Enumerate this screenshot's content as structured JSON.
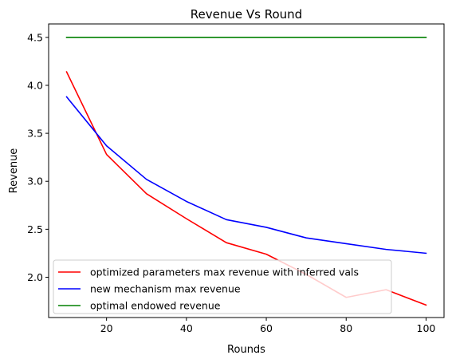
{
  "chart_data": {
    "type": "line",
    "title": "Revenue Vs Round",
    "xlabel": "Rounds",
    "ylabel": "Revenue",
    "xlim": [
      5.5,
      104.5
    ],
    "ylim": [
      1.58,
      4.64
    ],
    "xticks": [
      20,
      40,
      60,
      80,
      100
    ],
    "xtick_labels": [
      "20",
      "40",
      "60",
      "80",
      "100"
    ],
    "yticks": [
      2.0,
      2.5,
      3.0,
      3.5,
      4.0,
      4.5
    ],
    "ytick_labels": [
      "2.0",
      "2.5",
      "3.0",
      "3.5",
      "4.0",
      "4.5"
    ],
    "grid": false,
    "legend_position": "lower-left",
    "x": [
      10,
      20,
      30,
      40,
      50,
      60,
      70,
      80,
      90,
      100
    ],
    "series": [
      {
        "name": "optimized parameters max revenue with inferred vals",
        "color": "#ff0000",
        "values": [
          4.14,
          3.28,
          2.87,
          2.61,
          2.36,
          2.24,
          2.03,
          1.79,
          1.87,
          1.71
        ]
      },
      {
        "name": "new mechanism max revenue",
        "color": "#0000ff",
        "values": [
          3.88,
          3.37,
          3.02,
          2.79,
          2.6,
          2.52,
          2.41,
          2.35,
          2.29,
          2.25
        ]
      },
      {
        "name": "optimal endowed revenue",
        "color": "#008000",
        "values": [
          4.5,
          4.5,
          4.5,
          4.5,
          4.5,
          4.5,
          4.5,
          4.5,
          4.5,
          4.5
        ]
      }
    ]
  }
}
